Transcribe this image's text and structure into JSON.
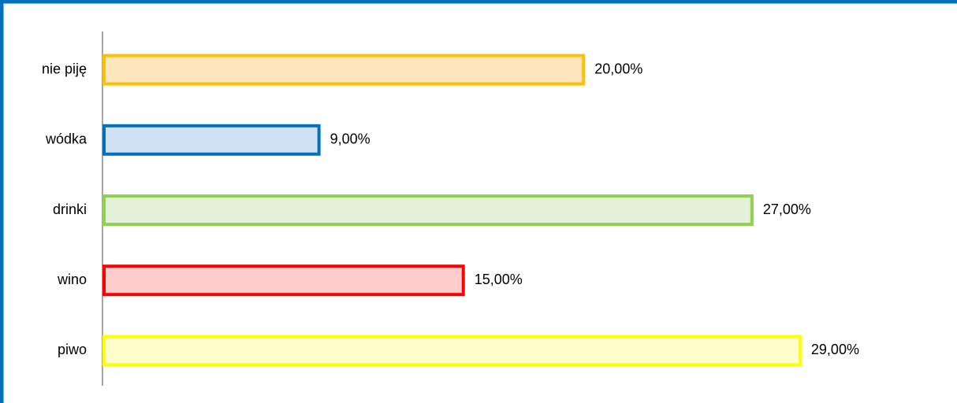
{
  "chart_data": {
    "type": "bar",
    "orientation": "horizontal",
    "categories": [
      "nie piję",
      "wódka",
      "drinki",
      "wino",
      "piwo"
    ],
    "values": [
      20,
      9,
      27,
      15,
      29
    ],
    "value_labels": [
      "20,00%",
      "9,00%",
      "27,00%",
      "15,00%",
      "29,00%"
    ],
    "colors": [
      "#ffc000",
      "#0070c0",
      "#92d050",
      "#ff0000",
      "#ffff00"
    ],
    "fill_colors": [
      "#fde6bd",
      "#cfe1f2",
      "#e3f1d9",
      "#ffcccc",
      "#ffffcc"
    ],
    "xlim": [
      0,
      35
    ]
  }
}
